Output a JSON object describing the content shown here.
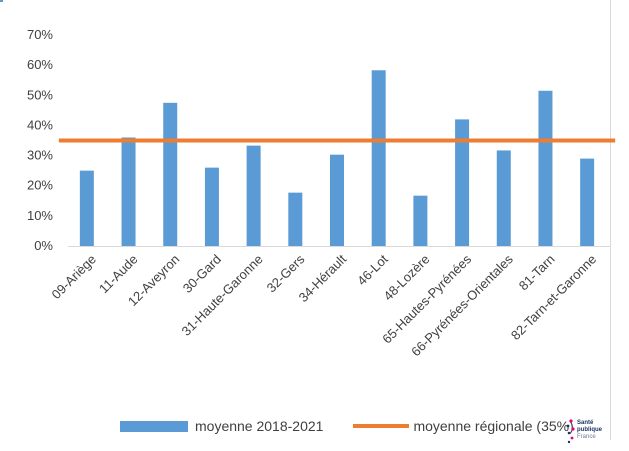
{
  "colors": {
    "bar": "#5b9bd5",
    "line": "#ed7d31",
    "text": "#404040",
    "grid": "#d9d9d9",
    "logo_dot_pink": "#e6007e",
    "logo_dot_blue": "#1d3461"
  },
  "legend": {
    "bar_label": "moyenne 2018-2021",
    "line_label": "moyenne régionale (35%)"
  },
  "logo": {
    "line1": "Santé",
    "line2": "publique",
    "line3": "France"
  },
  "chart_data": {
    "type": "bar",
    "categories": [
      "09-Ariège",
      "11-Aude",
      "12-Aveyron",
      "30-Gard",
      "31-Haute-Garonne",
      "32-Gers",
      "34-Hérault",
      "46-Lot",
      "48-Lozère",
      "65-Hautes-Pyrénées",
      "66-Pyrénées-Orientales",
      "81-Tarn",
      "82-Tarn-et-Garonne"
    ],
    "series": [
      {
        "name": "moyenne 2018-2021",
        "type": "bar",
        "values": [
          25,
          36,
          47.5,
          26,
          33.3,
          17.7,
          30.3,
          58.3,
          16.7,
          42,
          31.7,
          51.5,
          29
        ]
      },
      {
        "name": "moyenne régionale (35%)",
        "type": "line",
        "values": [
          35,
          35,
          35,
          35,
          35,
          35,
          35,
          35,
          35,
          35,
          35,
          35,
          35
        ]
      }
    ],
    "y_ticks": [
      "0%",
      "10%",
      "20%",
      "30%",
      "40%",
      "50%",
      "60%",
      "70%"
    ],
    "ylim": [
      0,
      70
    ],
    "grid": false,
    "legend_position": "bottom"
  }
}
